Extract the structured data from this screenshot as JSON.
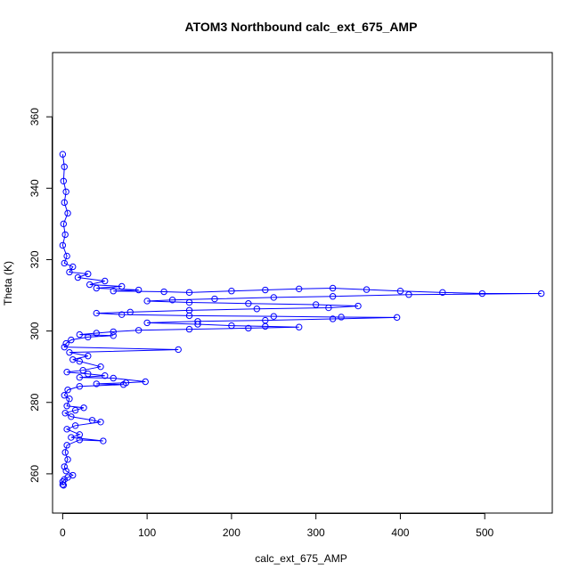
{
  "chart_data": {
    "type": "scatter",
    "title": "ATOM3 Northbound calc_ext_675_AMP",
    "xlabel": "calc_ext_675_AMP",
    "ylabel": "Theta (K)",
    "xlim": [
      -12,
      580
    ],
    "ylim": [
      249,
      378
    ],
    "x_ticks": [
      0,
      100,
      200,
      300,
      400,
      500
    ],
    "y_ticks": [
      260,
      280,
      300,
      320,
      340,
      360
    ],
    "grid": false,
    "legend": "none",
    "marker": "open-circle",
    "line": true,
    "series": [
      {
        "color": "#0000ff",
        "points": [
          [
            0,
            349.5
          ],
          [
            2,
            346
          ],
          [
            1,
            342
          ],
          [
            4,
            339
          ],
          [
            2,
            336
          ],
          [
            6,
            333
          ],
          [
            1,
            330
          ],
          [
            3,
            327
          ],
          [
            0,
            324
          ],
          [
            5,
            321
          ],
          [
            2,
            319
          ],
          [
            12,
            318
          ],
          [
            8,
            316.5
          ],
          [
            30,
            316
          ],
          [
            18,
            315
          ],
          [
            50,
            314
          ],
          [
            32,
            313
          ],
          [
            70,
            312.5
          ],
          [
            40,
            312
          ],
          [
            90,
            311.5
          ],
          [
            60,
            311.2
          ],
          [
            120,
            311
          ],
          [
            150,
            310.8
          ],
          [
            200,
            311.2
          ],
          [
            240,
            311.5
          ],
          [
            280,
            311.8
          ],
          [
            320,
            312
          ],
          [
            360,
            311.6
          ],
          [
            400,
            311.2
          ],
          [
            450,
            310.8
          ],
          [
            497,
            310.5
          ],
          [
            567,
            310.5
          ],
          [
            410,
            310.2
          ],
          [
            320,
            309.7
          ],
          [
            250,
            309.4
          ],
          [
            180,
            309
          ],
          [
            130,
            308.7
          ],
          [
            100,
            308.4
          ],
          [
            150,
            308
          ],
          [
            220,
            307.7
          ],
          [
            300,
            307.4
          ],
          [
            350,
            307
          ],
          [
            315,
            306.5
          ],
          [
            230,
            306.2
          ],
          [
            150,
            305.8
          ],
          [
            80,
            305.3
          ],
          [
            40,
            305
          ],
          [
            70,
            304.6
          ],
          [
            150,
            304.3
          ],
          [
            250,
            304.1
          ],
          [
            330,
            303.9
          ],
          [
            396,
            303.8
          ],
          [
            320,
            303.4
          ],
          [
            240,
            303
          ],
          [
            160,
            302.7
          ],
          [
            100,
            302.3
          ],
          [
            160,
            301.9
          ],
          [
            200,
            301.5
          ],
          [
            240,
            301.3
          ],
          [
            280,
            301.1
          ],
          [
            220,
            300.8
          ],
          [
            150,
            300.5
          ],
          [
            90,
            300.2
          ],
          [
            60,
            299.8
          ],
          [
            40,
            299.4
          ],
          [
            20,
            299
          ],
          [
            60,
            298.7
          ],
          [
            30,
            298.3
          ],
          [
            10,
            297.5
          ],
          [
            4,
            296.5
          ],
          [
            2,
            295.5
          ],
          [
            137,
            294.8
          ],
          [
            8,
            294
          ],
          [
            30,
            293
          ],
          [
            12,
            292
          ],
          [
            20,
            291.5
          ],
          [
            45,
            290
          ],
          [
            24,
            289
          ],
          [
            5,
            288.5
          ],
          [
            30,
            288
          ],
          [
            50,
            287.5
          ],
          [
            20,
            287
          ],
          [
            60,
            286.8
          ],
          [
            98,
            285.8
          ],
          [
            75,
            285.5
          ],
          [
            40,
            285.2
          ],
          [
            72,
            285
          ],
          [
            20,
            284.5
          ],
          [
            6,
            283.5
          ],
          [
            2,
            282
          ],
          [
            8,
            281
          ],
          [
            5,
            279
          ],
          [
            25,
            278.5
          ],
          [
            15,
            277.8
          ],
          [
            3,
            277
          ],
          [
            10,
            276
          ],
          [
            35,
            275
          ],
          [
            45,
            274.5
          ],
          [
            15,
            273.5
          ],
          [
            5,
            272.5
          ],
          [
            20,
            271
          ],
          [
            10,
            270.2
          ],
          [
            48,
            269.2
          ],
          [
            20,
            269.5
          ],
          [
            5,
            268
          ],
          [
            3,
            266
          ],
          [
            6,
            264
          ],
          [
            2,
            262
          ],
          [
            4,
            260.8
          ],
          [
            12,
            259.6
          ],
          [
            6,
            259
          ],
          [
            2,
            258.4
          ],
          [
            0,
            257.8
          ],
          [
            0,
            257
          ],
          [
            1,
            256.8
          ]
        ]
      }
    ]
  }
}
